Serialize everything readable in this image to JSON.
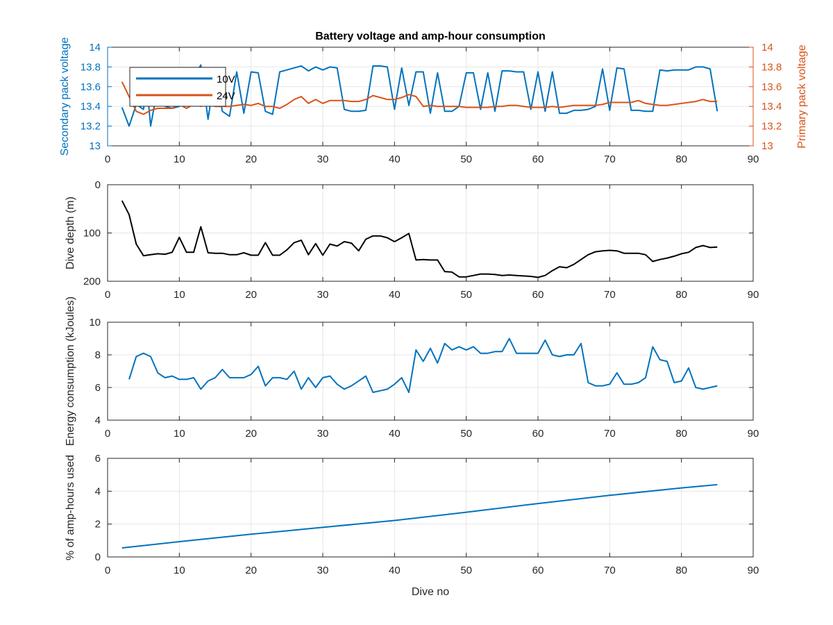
{
  "title": "Battery voltage and amp-hour consumption",
  "colors": {
    "blue": "#0072BD",
    "orange": "#D95319",
    "black": "#000000",
    "grid": "#e6e6e6",
    "axis": "#262626"
  },
  "chart_data": [
    {
      "type": "line",
      "title": "Battery voltage and amp-hour consumption",
      "xlim": [
        0,
        90
      ],
      "xticks": [
        0,
        10,
        20,
        30,
        40,
        50,
        60,
        70,
        80,
        90
      ],
      "ylabel": "Secondary pack voltage",
      "ylim": [
        13,
        14
      ],
      "yticks": [
        13,
        13.2,
        13.4,
        13.6,
        13.8,
        14
      ],
      "ylabel_right": "Primary pack voltage",
      "ylim_right": [
        13,
        14
      ],
      "yticks_right": [
        13,
        13.2,
        13.4,
        13.6,
        13.8,
        14
      ],
      "grid": true,
      "legend": "top-left",
      "series": [
        {
          "name": "10V",
          "axis": "left",
          "color": "#0072BD",
          "x": [
            2,
            3,
            4,
            5,
            5.5,
            6,
            7,
            8,
            9,
            10,
            11,
            12,
            13,
            14,
            15,
            16,
            17,
            18,
            19,
            20,
            21,
            22,
            23,
            24,
            25,
            26,
            27,
            28,
            29,
            30,
            31,
            32,
            33,
            34,
            35,
            36,
            37,
            38,
            39,
            40,
            41,
            42,
            43,
            44,
            45,
            46,
            47,
            48,
            49,
            50,
            51,
            52,
            53,
            54,
            55,
            56,
            57,
            58,
            59,
            60,
            61,
            62,
            63,
            64,
            65,
            66,
            67,
            68,
            69,
            70,
            71,
            72,
            73,
            74,
            75,
            76,
            77,
            78,
            79,
            80,
            81,
            82,
            83,
            84,
            85
          ],
          "y": [
            13.39,
            13.2,
            13.42,
            13.37,
            13.6,
            13.2,
            13.6,
            13.4,
            13.38,
            13.4,
            13.6,
            13.7,
            13.82,
            13.27,
            13.75,
            13.35,
            13.3,
            13.75,
            13.33,
            13.75,
            13.74,
            13.35,
            13.32,
            13.75,
            13.77,
            13.79,
            13.81,
            13.76,
            13.8,
            13.77,
            13.8,
            13.79,
            13.37,
            13.35,
            13.35,
            13.36,
            13.81,
            13.81,
            13.8,
            13.37,
            13.79,
            13.41,
            13.75,
            13.75,
            13.33,
            13.74,
            13.35,
            13.35,
            13.4,
            13.74,
            13.74,
            13.37,
            13.74,
            13.35,
            13.76,
            13.76,
            13.75,
            13.75,
            13.37,
            13.75,
            13.35,
            13.75,
            13.33,
            13.33,
            13.36,
            13.36,
            13.37,
            13.4,
            13.78,
            13.36,
            13.79,
            13.78,
            13.36,
            13.36,
            13.35,
            13.35,
            13.77,
            13.76,
            13.77,
            13.77,
            13.77,
            13.8,
            13.8,
            13.78,
            13.35
          ]
        },
        {
          "name": "24V",
          "axis": "right",
          "color": "#D95319",
          "x": [
            2,
            3,
            4,
            5,
            6,
            7,
            8,
            9,
            10,
            11,
            12,
            13,
            14,
            15,
            16,
            17,
            18,
            19,
            20,
            21,
            22,
            23,
            24,
            25,
            26,
            27,
            28,
            29,
            30,
            31,
            32,
            33,
            34,
            35,
            36,
            37,
            38,
            39,
            40,
            41,
            42,
            43,
            44,
            45,
            46,
            47,
            48,
            49,
            50,
            51,
            52,
            53,
            54,
            55,
            56,
            57,
            58,
            59,
            60,
            61,
            62,
            63,
            64,
            65,
            66,
            67,
            68,
            69,
            70,
            71,
            72,
            73,
            74,
            75,
            76,
            77,
            78,
            79,
            80,
            81,
            82,
            83,
            84,
            85
          ],
          "y": [
            13.65,
            13.5,
            13.35,
            13.32,
            13.36,
            13.38,
            13.38,
            13.38,
            13.42,
            13.38,
            13.42,
            13.4,
            13.42,
            13.4,
            13.4,
            13.4,
            13.41,
            13.42,
            13.41,
            13.43,
            13.4,
            13.4,
            13.38,
            13.42,
            13.47,
            13.5,
            13.43,
            13.47,
            13.43,
            13.46,
            13.46,
            13.46,
            13.45,
            13.45,
            13.47,
            13.51,
            13.49,
            13.47,
            13.47,
            13.49,
            13.52,
            13.5,
            13.4,
            13.41,
            13.4,
            13.4,
            13.4,
            13.4,
            13.39,
            13.39,
            13.39,
            13.39,
            13.4,
            13.4,
            13.41,
            13.41,
            13.4,
            13.39,
            13.39,
            13.39,
            13.4,
            13.39,
            13.4,
            13.41,
            13.41,
            13.41,
            13.41,
            13.42,
            13.44,
            13.44,
            13.44,
            13.44,
            13.46,
            13.43,
            13.42,
            13.41,
            13.41,
            13.42,
            13.43,
            13.44,
            13.45,
            13.47,
            13.45,
            13.45
          ]
        }
      ]
    },
    {
      "type": "line",
      "xlim": [
        0,
        90
      ],
      "xticks": [
        0,
        10,
        20,
        30,
        40,
        50,
        60,
        70,
        80,
        90
      ],
      "ylabel": "Dive depth (m)",
      "ylim": [
        0,
        200
      ],
      "y_reversed": true,
      "yticks": [
        0,
        100,
        200
      ],
      "grid": true,
      "series": [
        {
          "color": "#000000",
          "x": [
            2,
            3,
            4,
            5,
            6,
            7,
            8,
            9,
            10,
            11,
            12,
            13,
            14,
            15,
            16,
            17,
            18,
            19,
            20,
            21,
            22,
            23,
            24,
            25,
            26,
            27,
            28,
            29,
            30,
            31,
            32,
            33,
            34,
            35,
            36,
            37,
            38,
            39,
            40,
            41,
            42,
            43,
            44,
            45,
            46,
            47,
            48,
            49,
            50,
            51,
            52,
            53,
            54,
            55,
            56,
            57,
            58,
            59,
            60,
            61,
            62,
            63,
            64,
            65,
            66,
            67,
            68,
            69,
            70,
            71,
            72,
            73,
            74,
            75,
            76,
            77,
            78,
            79,
            80,
            81,
            82,
            83,
            84,
            85
          ],
          "y": [
            33,
            62,
            123,
            147,
            145,
            143,
            144,
            140,
            109,
            140,
            140,
            87,
            141,
            142,
            142,
            145,
            145,
            141,
            146,
            146,
            120,
            146,
            146,
            135,
            120,
            115,
            145,
            122,
            146,
            123,
            127,
            118,
            121,
            137,
            113,
            106,
            106,
            110,
            118,
            110,
            101,
            156,
            155,
            156,
            156,
            180,
            181,
            191,
            191,
            188,
            185,
            185,
            186,
            188,
            187,
            188,
            189,
            190,
            192,
            188,
            178,
            170,
            172,
            165,
            155,
            145,
            139,
            137,
            136,
            137,
            142,
            142,
            142,
            145,
            159,
            155,
            152,
            148,
            143,
            140,
            130,
            126,
            130,
            129
          ]
        }
      ]
    },
    {
      "type": "line",
      "xlim": [
        0,
        90
      ],
      "xticks": [
        0,
        10,
        20,
        30,
        40,
        50,
        60,
        70,
        80,
        90
      ],
      "ylabel": "Energy consumption (kJoules)",
      "ylim": [
        4,
        10
      ],
      "yticks": [
        4,
        6,
        8,
        10
      ],
      "grid": true,
      "series": [
        {
          "color": "#0072BD",
          "x": [
            3,
            4,
            5,
            6,
            7,
            8,
            9,
            10,
            11,
            12,
            13,
            14,
            15,
            16,
            17,
            18,
            19,
            20,
            21,
            22,
            23,
            24,
            25,
            26,
            27,
            28,
            29,
            30,
            31,
            32,
            33,
            34,
            35,
            36,
            37,
            38,
            39,
            40,
            41,
            42,
            43,
            44,
            45,
            46,
            47,
            48,
            49,
            50,
            51,
            52,
            53,
            54,
            55,
            56,
            57,
            58,
            59,
            60,
            61,
            62,
            63,
            64,
            65,
            66,
            67,
            68,
            69,
            70,
            71,
            72,
            73,
            74,
            75,
            76,
            77,
            78,
            79,
            80,
            81,
            82,
            83,
            84,
            85
          ],
          "y": [
            6.5,
            7.9,
            8.1,
            7.9,
            6.9,
            6.6,
            6.7,
            6.5,
            6.5,
            6.6,
            5.9,
            6.4,
            6.6,
            7.1,
            6.6,
            6.6,
            6.6,
            6.8,
            7.3,
            6.1,
            6.6,
            6.6,
            6.5,
            7.0,
            5.9,
            6.6,
            6.0,
            6.6,
            6.7,
            6.2,
            5.9,
            6.1,
            6.4,
            6.7,
            5.7,
            5.8,
            5.9,
            6.2,
            6.6,
            5.7,
            8.3,
            7.6,
            8.4,
            7.5,
            8.7,
            8.3,
            8.5,
            8.3,
            8.5,
            8.1,
            8.1,
            8.2,
            8.2,
            9.0,
            8.1,
            8.1,
            8.1,
            8.1,
            8.9,
            8.0,
            7.9,
            8.0,
            8.0,
            8.7,
            6.3,
            6.1,
            6.1,
            6.2,
            6.9,
            6.2,
            6.2,
            6.3,
            6.6,
            8.5,
            7.7,
            7.6,
            6.3,
            6.4,
            7.2,
            6.0,
            5.9,
            6.0,
            6.1
          ]
        }
      ]
    },
    {
      "type": "line",
      "xlim": [
        0,
        90
      ],
      "xticks": [
        0,
        10,
        20,
        30,
        40,
        50,
        60,
        70,
        80,
        90
      ],
      "xlabel": "Dive no",
      "ylabel": "% of amp-hours used",
      "ylim": [
        0,
        6
      ],
      "yticks": [
        0,
        2,
        4,
        6
      ],
      "grid": true,
      "series": [
        {
          "color": "#0072BD",
          "x": [
            2,
            10,
            20,
            30,
            40,
            50,
            60,
            70,
            80,
            85
          ],
          "y": [
            0.55,
            0.93,
            1.38,
            1.8,
            2.22,
            2.72,
            3.25,
            3.75,
            4.2,
            4.4
          ]
        }
      ]
    }
  ]
}
